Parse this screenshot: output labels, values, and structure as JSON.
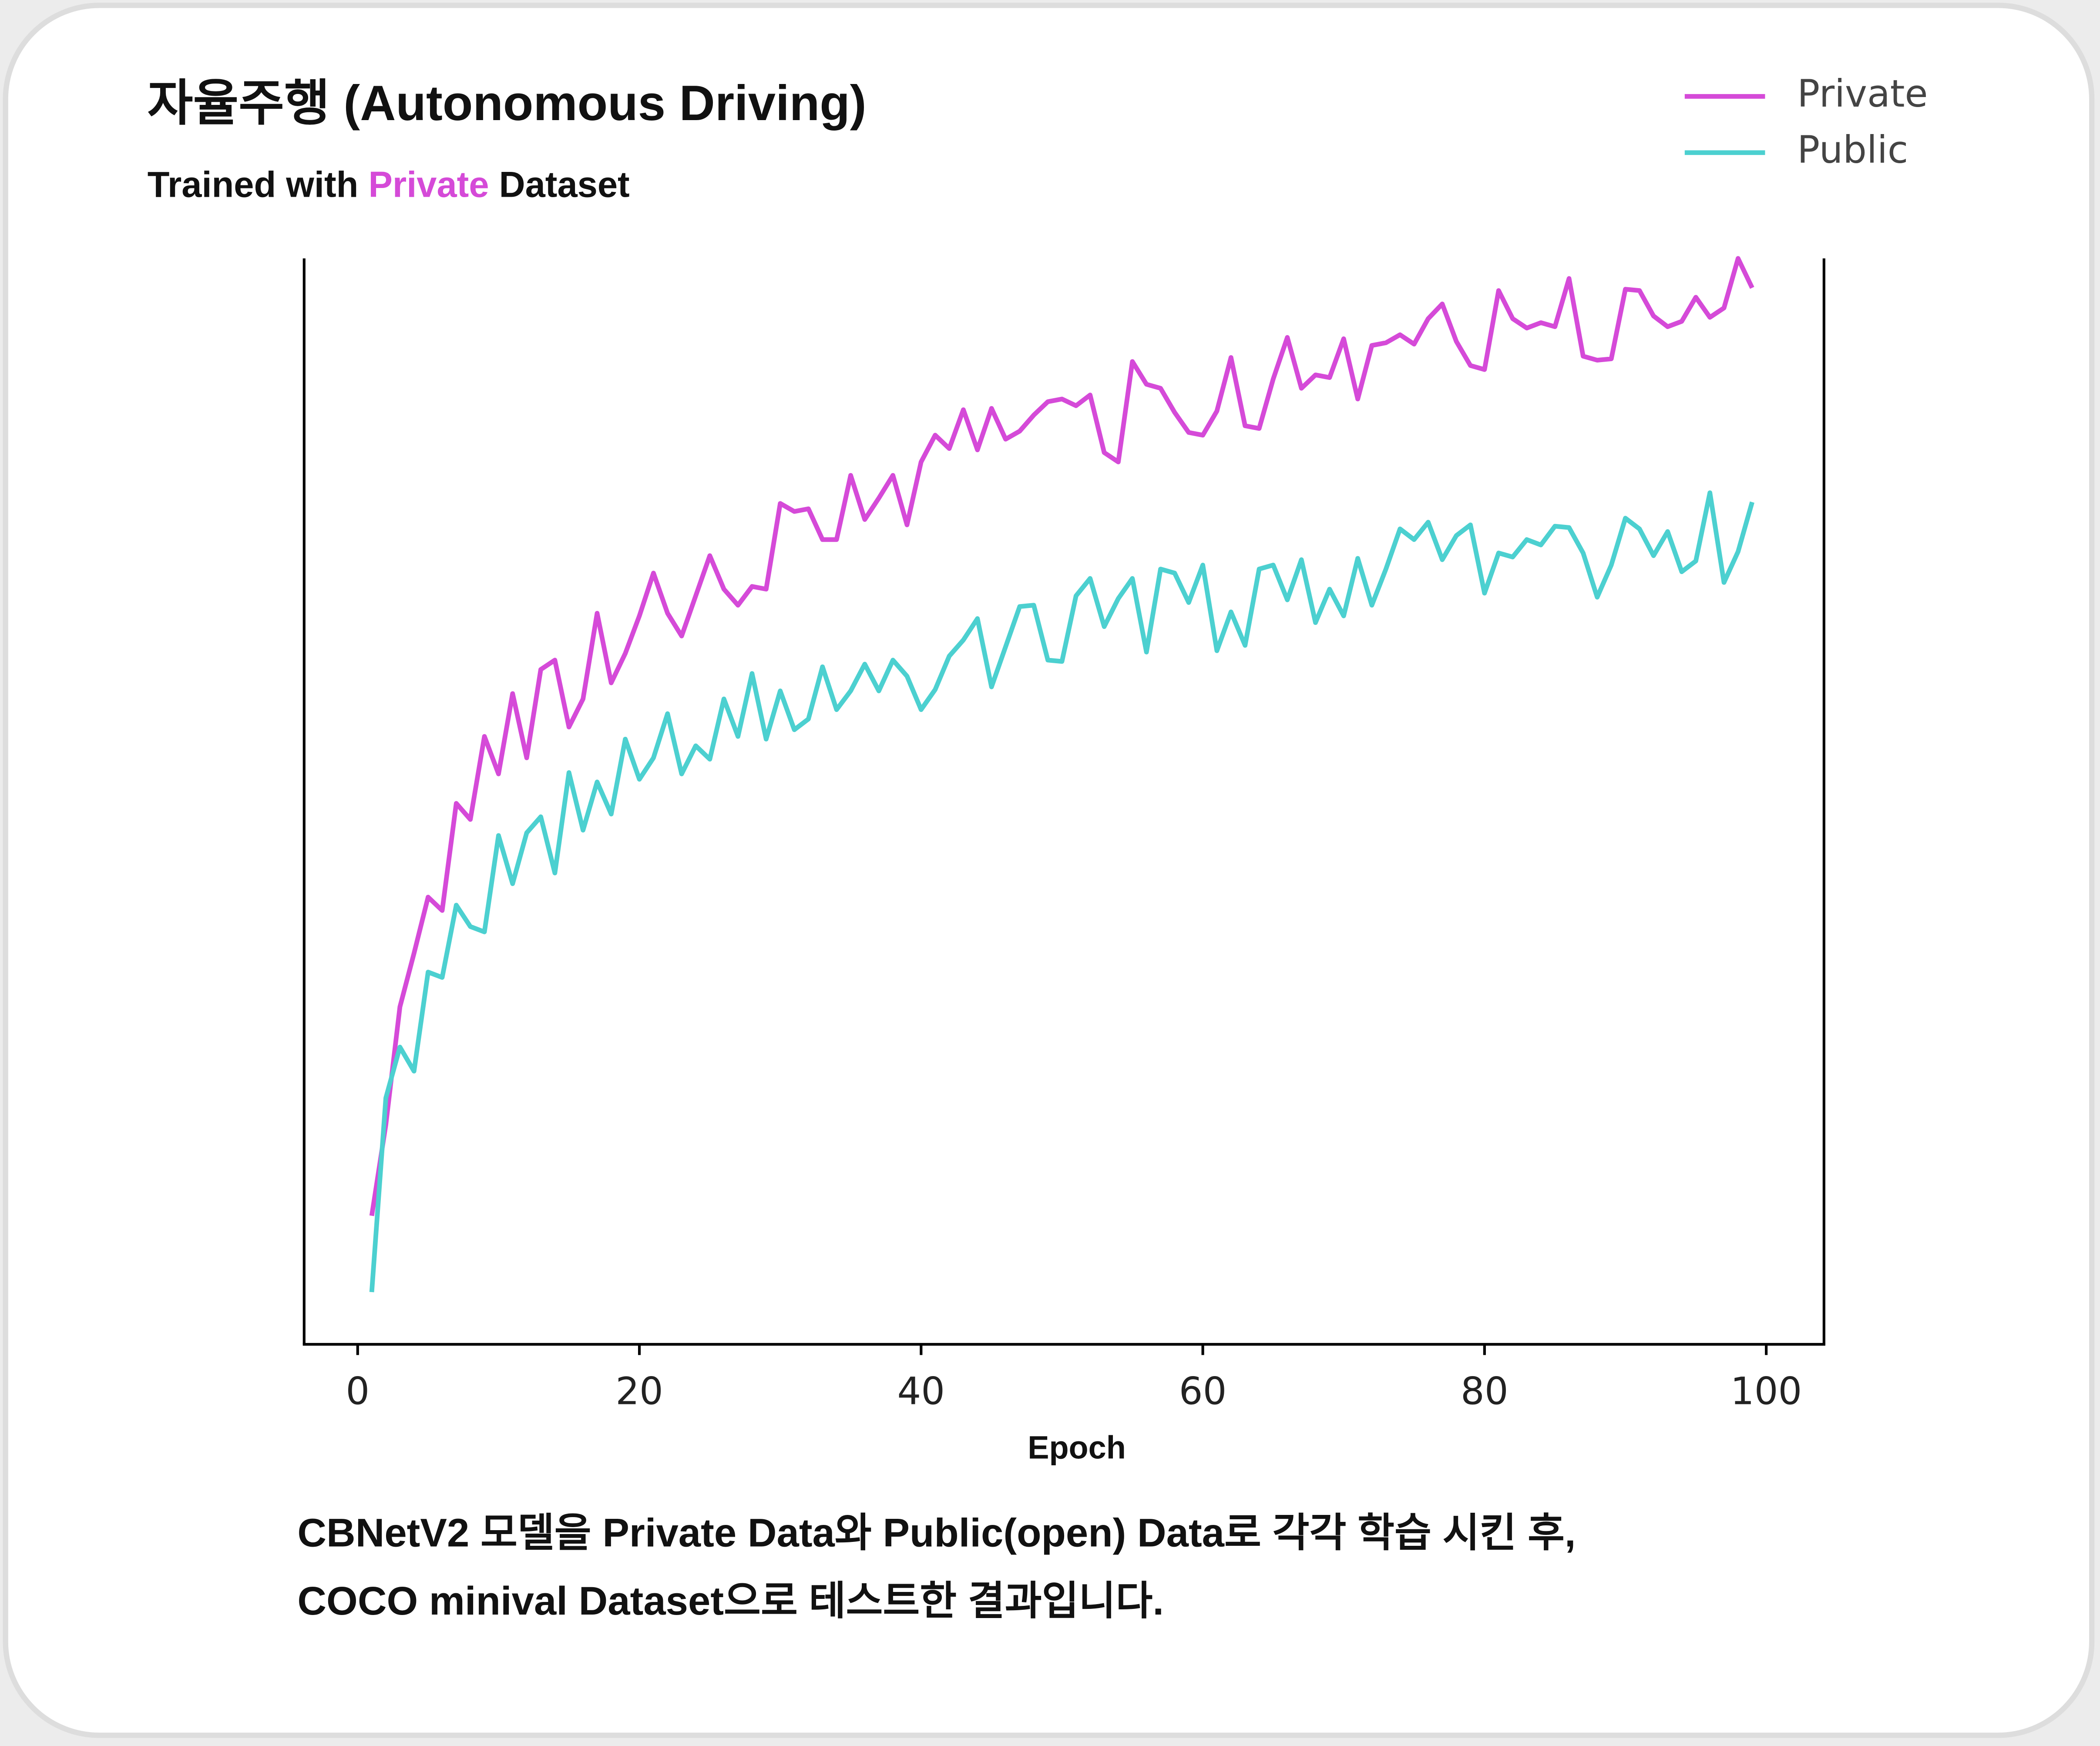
{
  "chart_data": {
    "type": "line",
    "title": "자율주행 (Autonomous Driving)",
    "subtitle": [
      "Trained with ",
      "Private",
      " Dataset"
    ],
    "subtitle_highlight_color": "#d54ad8",
    "xlabel": "Epoch",
    "caption": [
      "CBNetV2 모델을 Private Data와 Public(open) Data로 각각 학습 시킨 후,",
      "COCO minival Dataset으로 테스트한 결과입니다."
    ],
    "x": [
      1,
      2,
      3,
      4,
      5,
      6,
      7,
      8,
      9,
      10,
      11,
      12,
      13,
      14,
      15,
      16,
      17,
      18,
      19,
      20,
      21,
      22,
      23,
      24,
      25,
      26,
      27,
      28,
      29,
      30,
      31,
      32,
      33,
      34,
      35,
      36,
      37,
      38,
      39,
      40,
      41,
      42,
      43,
      44,
      45,
      46,
      47,
      48,
      49,
      50,
      51,
      52,
      53,
      54,
      55,
      56,
      57,
      58,
      59,
      60,
      61,
      62,
      63,
      64,
      65,
      66,
      67,
      68,
      69,
      70,
      71,
      72,
      73,
      74,
      75,
      76,
      77,
      78,
      79,
      80,
      81,
      82,
      83,
      84,
      85,
      86,
      87,
      88,
      89,
      90,
      91,
      92,
      93,
      94,
      95,
      96,
      97,
      98,
      99
    ],
    "series": [
      {
        "name": "Private",
        "color": "#d54ad8",
        "values": [
          96,
          164,
          252,
          292,
          334,
          324,
          404,
          392,
          454,
          426,
          486,
          438,
          504,
          511,
          461,
          482,
          546,
          494,
          516,
          544,
          576,
          546,
          529,
          559,
          589,
          564,
          552,
          566,
          564,
          628,
          622,
          624,
          601,
          601,
          649,
          616,
          632,
          649,
          612,
          659,
          679,
          669,
          698,
          668,
          699,
          676,
          682,
          694,
          704,
          706,
          701,
          709,
          666,
          659,
          734,
          717,
          714,
          696,
          681,
          679,
          697,
          737,
          686,
          684,
          721,
          752,
          714,
          724,
          722,
          751,
          706,
          746,
          748,
          754,
          747,
          766,
          777,
          749,
          731,
          728,
          787,
          766,
          759,
          763,
          760,
          796,
          738,
          735,
          736,
          788,
          787,
          768,
          760,
          764,
          782,
          767,
          774,
          811,
          789
        ]
      },
      {
        "name": "Public",
        "color": "#4cd0d0",
        "values": [
          39,
          184,
          222,
          204,
          278,
          274,
          328,
          312,
          308,
          380,
          344,
          382,
          394,
          352,
          427,
          384,
          420,
          396,
          452,
          422,
          438,
          471,
          426,
          447,
          437,
          482,
          454,
          501,
          452,
          488,
          459,
          467,
          506,
          474,
          488,
          508,
          488,
          511,
          499,
          474,
          489,
          514,
          526,
          542,
          491,
          521,
          551,
          552,
          511,
          510,
          559,
          572,
          536,
          557,
          572,
          517,
          579,
          576,
          554,
          582,
          518,
          547,
          522,
          579,
          582,
          556,
          586,
          539,
          564,
          544,
          587,
          552,
          579,
          609,
          601,
          614,
          586,
          604,
          612,
          561,
          591,
          588,
          601,
          597,
          611,
          610,
          591,
          558,
          582,
          617,
          609,
          589,
          607,
          577,
          585,
          636,
          569,
          592,
          629
        ]
      }
    ],
    "xlim": [
      -3.8,
      104.1
    ],
    "xticks": [
      0,
      20,
      40,
      60,
      80,
      100
    ],
    "ylim": [
      0,
      811
    ],
    "legend": "upper right"
  }
}
